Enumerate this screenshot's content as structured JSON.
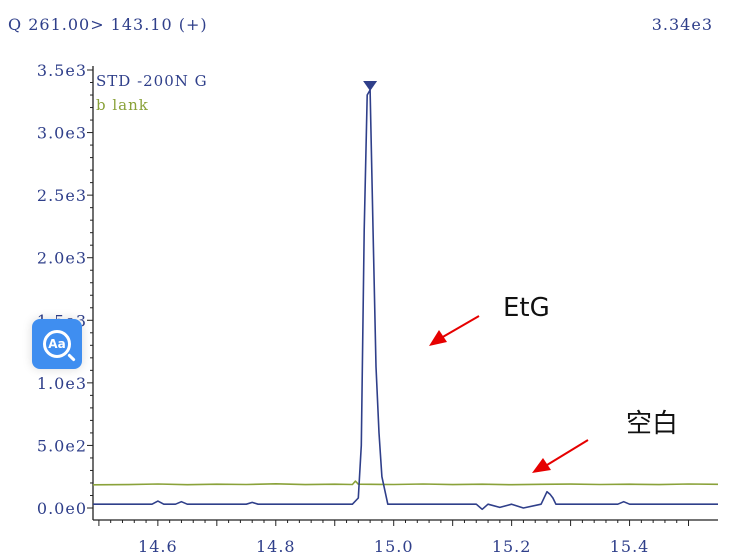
{
  "header": {
    "transition": "Q 261.00> 143.10 (+)",
    "max_intensity": "3.34e3"
  },
  "legend": [
    {
      "name": "STD -200N G",
      "color": "#2f3f8a"
    },
    {
      "name": "b lank",
      "color": "#8aa23a"
    }
  ],
  "annotations": {
    "peak_label": "EtG",
    "blank_label": "空白",
    "arrow_color": "#e60000"
  },
  "overlay": {
    "icon": "translate-lens-icon",
    "text": "Aa",
    "color": "#3f8ef0"
  },
  "chart_data": {
    "type": "line",
    "title": "",
    "xlabel": "",
    "ylabel": "",
    "xlim": [
      14.49,
      15.55
    ],
    "ylim": [
      0,
      3500
    ],
    "x_ticks": [
      14.6,
      14.8,
      15.0,
      15.2,
      15.4
    ],
    "x_tick_labels": [
      "14.6",
      "14.8",
      "15.0",
      "15.2",
      "15.4"
    ],
    "y_ticks": [
      0,
      500,
      1000,
      1500,
      2000,
      2500,
      3000,
      3500
    ],
    "y_tick_labels": [
      "0.0e0",
      "5.0e2",
      "1.0e3",
      "1.5e3",
      "2.0e3",
      "2.5e3",
      "3.0e3",
      "3.5e3"
    ],
    "series": [
      {
        "name": "STD -200N G",
        "color": "#2f3f8a",
        "x": [
          14.49,
          14.59,
          14.6,
          14.61,
          14.63,
          14.64,
          14.65,
          14.75,
          14.76,
          14.77,
          14.9,
          14.93,
          14.94,
          14.945,
          14.95,
          14.955,
          14.96,
          14.965,
          14.97,
          14.975,
          14.98,
          14.99,
          15.05,
          15.14,
          15.15,
          15.16,
          15.18,
          15.2,
          15.22,
          15.25,
          15.26,
          15.265,
          15.27,
          15.275,
          15.28,
          15.38,
          15.39,
          15.4,
          15.55
        ],
        "y": [
          30,
          30,
          55,
          30,
          30,
          50,
          30,
          30,
          45,
          30,
          30,
          30,
          80,
          500,
          2220,
          3300,
          3340,
          2200,
          1130,
          600,
          250,
          30,
          30,
          30,
          -10,
          30,
          5,
          30,
          0,
          30,
          130,
          110,
          80,
          30,
          30,
          30,
          50,
          30,
          30
        ]
      },
      {
        "name": "b lank",
        "color": "#8aa23a",
        "x": [
          14.49,
          14.55,
          14.6,
          14.65,
          14.7,
          14.75,
          14.8,
          14.85,
          14.9,
          14.93,
          14.935,
          14.94,
          15.0,
          15.05,
          15.1,
          15.15,
          15.2,
          15.25,
          15.3,
          15.35,
          15.4,
          15.45,
          15.5,
          15.55
        ],
        "y": [
          185,
          187,
          192,
          186,
          190,
          188,
          193,
          187,
          190,
          188,
          215,
          190,
          188,
          192,
          187,
          190,
          186,
          189,
          191,
          188,
          190,
          187,
          192,
          189
        ]
      }
    ],
    "peak_marker": {
      "x": 14.96,
      "y": 3340,
      "symbol": "down-triangle"
    }
  }
}
